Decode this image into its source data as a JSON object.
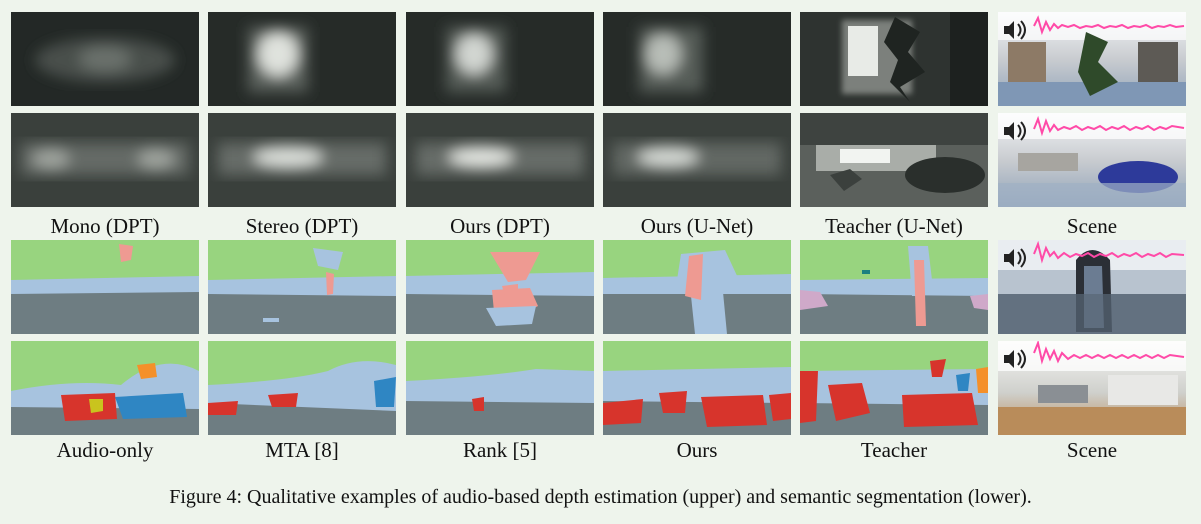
{
  "labels_depth": [
    "Mono (DPT)",
    "Stereo (DPT)",
    "Ours (DPT)",
    "Ours (U-Net)",
    "Teacher (U-Net)",
    "Scene"
  ],
  "labels_seg": [
    "Audio-only",
    "MTA [8]",
    "Rank [5]",
    "Ours",
    "Teacher",
    "Scene"
  ],
  "caption": "Figure 4: Qualitative examples of audio-based depth estimation (upper) and semantic segmentation (lower).",
  "icons": [
    "speaker-icon"
  ],
  "colors": {
    "ceiling": "#98d47f",
    "wall": "#a7c3df",
    "floor": "#6e7d82",
    "person": "#ee9a92",
    "furniture": "#d7342c",
    "object": "#2f86c3",
    "accent": "#f4902a",
    "waveform": "#ff4aa8"
  }
}
